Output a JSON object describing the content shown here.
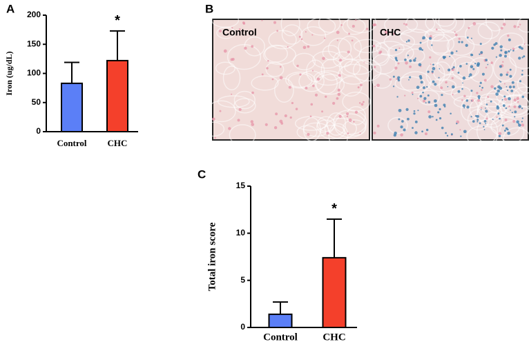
{
  "figure": {
    "panel_a": "A",
    "panel_b": "B",
    "panel_c": "C",
    "image_left_label": "Control",
    "image_right_label": "CHC"
  },
  "chart_data": [
    {
      "type": "bar",
      "y_label": "Iron (ug/dL)",
      "categories": [
        "Control",
        "CHC"
      ],
      "values": [
        83,
        122
      ],
      "errors": [
        36,
        51
      ],
      "colors": [
        "#5b7ff7",
        "#f4402b"
      ],
      "annotation": "*",
      "ylim": [
        0,
        200
      ],
      "yticks": [
        0,
        50,
        100,
        150,
        200
      ]
    },
    {
      "type": "bar",
      "y_label": "Total iron score",
      "categories": [
        "Control",
        "CHC"
      ],
      "values": [
        1.4,
        7.4
      ],
      "errors": [
        1.3,
        4.1
      ],
      "colors": [
        "#5b7ff7",
        "#f4402b"
      ],
      "annotation": "*",
      "ylim": [
        0,
        15
      ],
      "yticks": [
        0,
        5,
        10,
        15
      ]
    }
  ]
}
